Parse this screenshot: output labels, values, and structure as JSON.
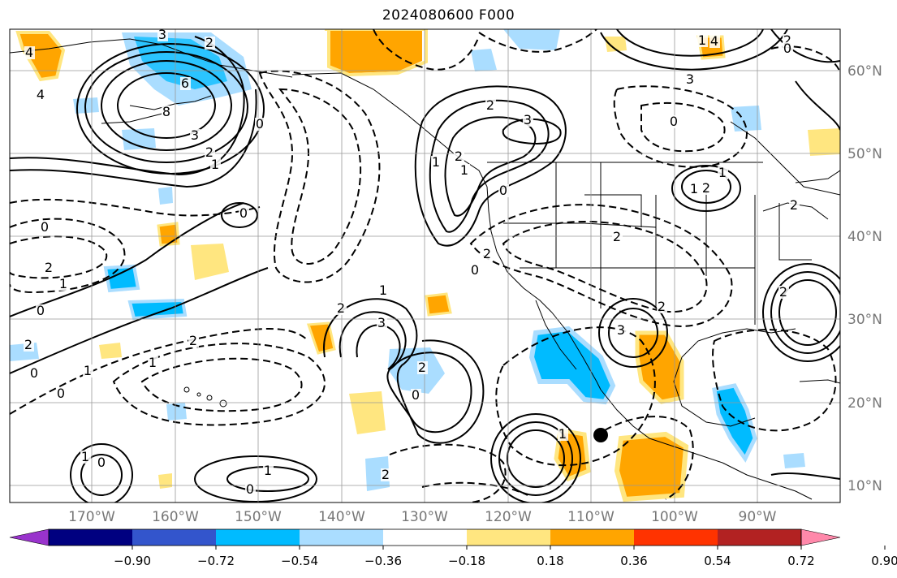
{
  "title": "2024080600 F000",
  "map": {
    "lat_labels": [
      "60°N",
      "50°N",
      "40°N",
      "30°N",
      "20°N",
      "10°N"
    ],
    "lon_labels": [
      "170°W",
      "160°W",
      "150°W",
      "140°W",
      "130°W",
      "120°W",
      "110°W",
      "100°W",
      "90°W"
    ],
    "contour_labels": [
      "4",
      "3",
      "2",
      "4",
      "6",
      "8",
      "3",
      "2",
      "1",
      "0",
      "0",
      "2",
      "1",
      "0",
      "2",
      "0",
      "1",
      "0",
      "2",
      "1",
      "0",
      "1",
      "2",
      "3",
      "2",
      "0",
      "2",
      "1",
      "0",
      "3",
      "2",
      "1",
      "0",
      "2",
      "1",
      "2",
      "3",
      "2",
      "0",
      "2",
      "1",
      "4",
      "3",
      "2",
      "0",
      "1",
      "2",
      "2",
      "1",
      "0",
      "1",
      "0",
      "1",
      "2"
    ]
  },
  "colorbar": {
    "ticks": [
      "−0.90",
      "−0.72",
      "−0.54",
      "−0.36",
      "−0.18",
      "0.18",
      "0.36",
      "0.54",
      "0.72",
      "0.90"
    ],
    "colors": [
      "#9933cc",
      "#000080",
      "#3355cc",
      "#00bbff",
      "#aaddff",
      "#ffffff",
      "#ffe680",
      "#ffa500",
      "#ff3300",
      "#b22222",
      "#ff88aa"
    ]
  }
}
